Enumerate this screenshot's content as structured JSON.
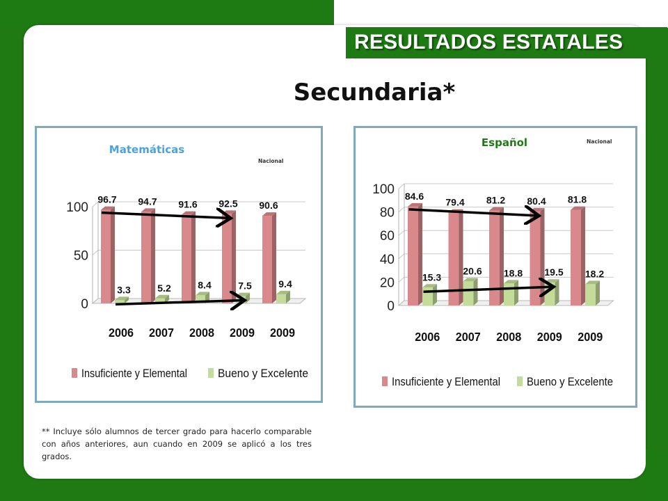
{
  "header": {
    "banner_title": "RESULTADOS ESTATALES"
  },
  "page_title": "Secundaria*",
  "footnote": "** Incluye sólo alumnos de tercer grado para hacerlo comparable con años anteriores, aun cuando en 2009 se aplicó a los tres grados.",
  "colors": {
    "series_1": "#d9898b",
    "series_2": "#c4dc9a",
    "title_blue": "#4aa3df",
    "title_green": "#1e7b13",
    "border": "#7fa9bd"
  },
  "chart_data": [
    {
      "type": "bar",
      "title": "Matemáticas",
      "annotation": "Nacional",
      "categories": [
        "2006",
        "2007",
        "2008",
        "2009",
        "2009"
      ],
      "series": [
        {
          "name": "Insuficiente y Elemental",
          "values": [
            96.7,
            94.7,
            91.6,
            92.5,
            90.6
          ]
        },
        {
          "name": "Bueno y Excelente",
          "values": [
            3.3,
            5.2,
            8.4,
            7.5,
            9.4
          ]
        }
      ],
      "yticks": [
        0,
        50,
        100
      ],
      "ylim": [
        0,
        100
      ],
      "legend": "bottom"
    },
    {
      "type": "bar",
      "title": "Español",
      "annotation": "Nacional",
      "categories": [
        "2006",
        "2007",
        "2008",
        "2009",
        "2009"
      ],
      "series": [
        {
          "name": "Insuficiente y Elemental",
          "values": [
            84.6,
            79.4,
            81.2,
            80.4,
            81.8
          ]
        },
        {
          "name": "Bueno y Excelente",
          "values": [
            15.3,
            20.6,
            18.8,
            19.5,
            18.2
          ]
        }
      ],
      "yticks": [
        0,
        20,
        40,
        60,
        80,
        100
      ],
      "ylim": [
        0,
        100
      ],
      "legend": "bottom"
    }
  ]
}
